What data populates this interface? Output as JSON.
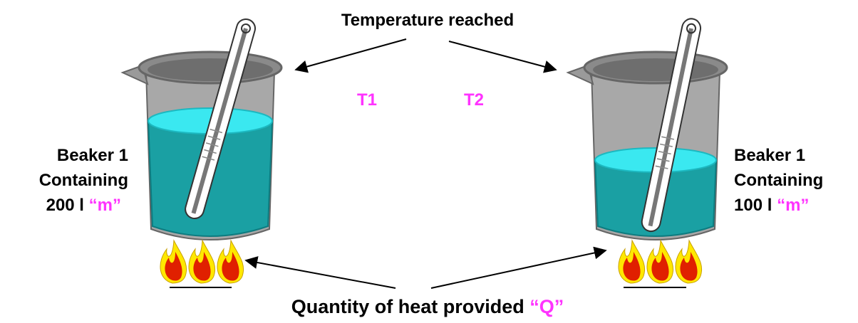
{
  "top_label": "Temperature reached",
  "markers": [
    "T1",
    "T2"
  ],
  "beakers": [
    {
      "lines": [
        "Beaker 1",
        "Containing",
        "200 l"
      ],
      "unit": "“m”"
    },
    {
      "lines": [
        "Beaker 1",
        "Containing",
        "100 l"
      ],
      "unit": "“m”"
    }
  ],
  "bottom_label": {
    "text": "Quantity of heat provided",
    "highlight": "“Q”"
  }
}
